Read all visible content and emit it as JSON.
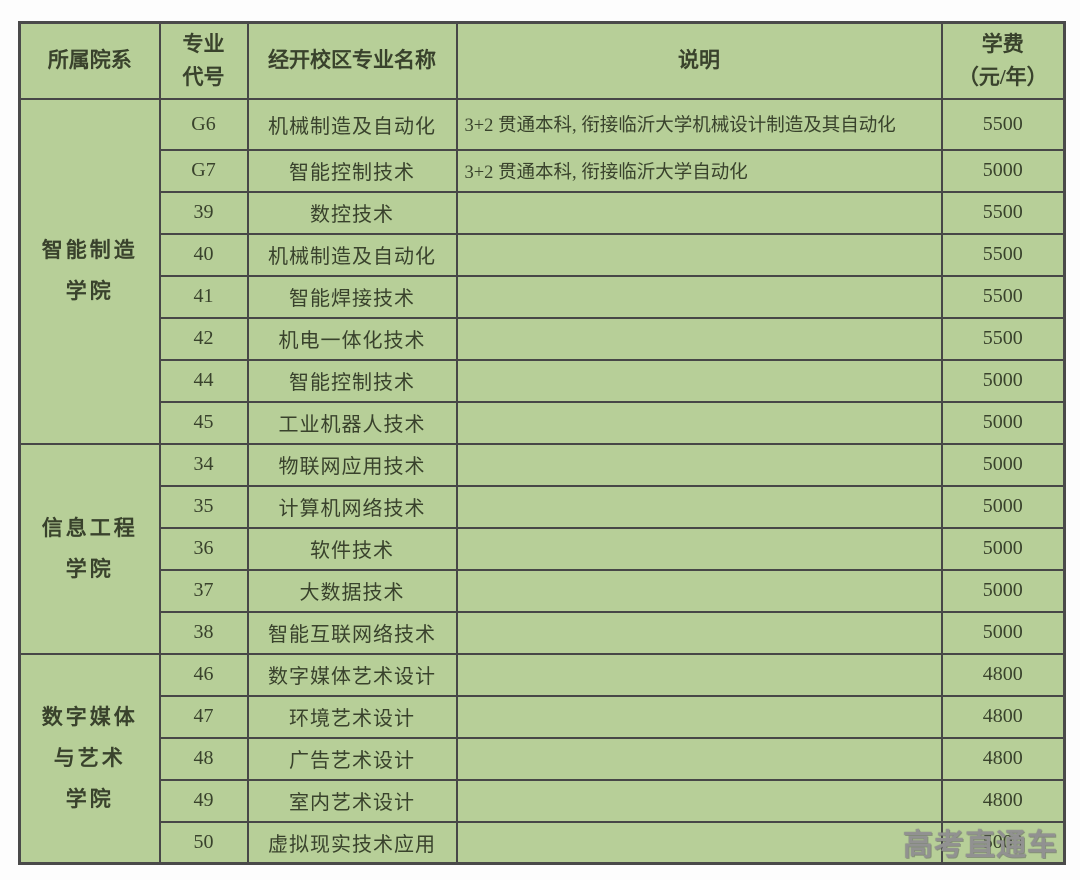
{
  "colors": {
    "page_bg": "#fdfdfd",
    "cell_bg": "#b7cf98",
    "border": "#474747",
    "text": "#39422c",
    "watermark_gray": "#969696"
  },
  "table": {
    "headers": {
      "college": "所属院系",
      "code_line1": "专业",
      "code_line2": "代号",
      "major": "经开校区专业名称",
      "note": "说明",
      "fee_line1": "学费",
      "fee_line2": "（元/年）"
    },
    "groups": [
      {
        "college_lines": [
          "智能制造",
          "学院"
        ],
        "rows": [
          {
            "code": "G6",
            "major": "机械制造及自动化",
            "note": "3+2 贯通本科, 衔接临沂大学机械设计制造及其自动化",
            "fee": "5500",
            "tall": true
          },
          {
            "code": "G7",
            "major": "智能控制技术",
            "note": "3+2 贯通本科, 衔接临沂大学自动化",
            "fee": "5000"
          },
          {
            "code": "39",
            "major": "数控技术",
            "note": "",
            "fee": "5500"
          },
          {
            "code": "40",
            "major": "机械制造及自动化",
            "note": "",
            "fee": "5500"
          },
          {
            "code": "41",
            "major": "智能焊接技术",
            "note": "",
            "fee": "5500"
          },
          {
            "code": "42",
            "major": "机电一体化技术",
            "note": "",
            "fee": "5500"
          },
          {
            "code": "44",
            "major": "智能控制技术",
            "note": "",
            "fee": "5000"
          },
          {
            "code": "45",
            "major": "工业机器人技术",
            "note": "",
            "fee": "5000"
          }
        ]
      },
      {
        "college_lines": [
          "信息工程",
          "学院"
        ],
        "rows": [
          {
            "code": "34",
            "major": "物联网应用技术",
            "note": "",
            "fee": "5000"
          },
          {
            "code": "35",
            "major": "计算机网络技术",
            "note": "",
            "fee": "5000"
          },
          {
            "code": "36",
            "major": "软件技术",
            "note": "",
            "fee": "5000"
          },
          {
            "code": "37",
            "major": "大数据技术",
            "note": "",
            "fee": "5000"
          },
          {
            "code": "38",
            "major": "智能互联网络技术",
            "note": "",
            "fee": "5000"
          }
        ]
      },
      {
        "college_lines": [
          "数字媒体",
          "与艺术",
          "学院"
        ],
        "rows": [
          {
            "code": "46",
            "major": "数字媒体艺术设计",
            "note": "",
            "fee": "4800"
          },
          {
            "code": "47",
            "major": "环境艺术设计",
            "note": "",
            "fee": "4800"
          },
          {
            "code": "48",
            "major": "广告艺术设计",
            "note": "",
            "fee": "4800"
          },
          {
            "code": "49",
            "major": "室内艺术设计",
            "note": "",
            "fee": "4800"
          },
          {
            "code": "50",
            "major": "虚拟现实技术应用",
            "note": "",
            "fee": "5000"
          }
        ]
      }
    ]
  },
  "watermark": {
    "text": "高考直通车"
  }
}
